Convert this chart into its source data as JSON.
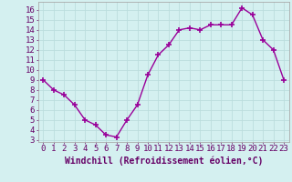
{
  "x": [
    0,
    1,
    2,
    3,
    4,
    5,
    6,
    7,
    8,
    9,
    10,
    11,
    12,
    13,
    14,
    15,
    16,
    17,
    18,
    19,
    20,
    21,
    22,
    23
  ],
  "y": [
    9.0,
    8.0,
    7.5,
    6.5,
    5.0,
    4.5,
    3.5,
    3.3,
    5.0,
    6.5,
    9.5,
    11.5,
    12.5,
    14.0,
    14.2,
    14.0,
    14.5,
    14.5,
    14.5,
    16.2,
    15.5,
    13.0,
    12.0,
    9.0
  ],
  "line_color": "#990099",
  "marker": "+",
  "markersize": 4,
  "linewidth": 1.0,
  "xlabel": "Windchill (Refroidissement éolien,°C)",
  "xlabel_fontsize": 7,
  "ylabel_ticks": [
    3,
    4,
    5,
    6,
    7,
    8,
    9,
    10,
    11,
    12,
    13,
    14,
    15,
    16
  ],
  "xtick_labels": [
    "0",
    "1",
    "2",
    "3",
    "4",
    "5",
    "6",
    "7",
    "8",
    "9",
    "10",
    "11",
    "12",
    "13",
    "14",
    "15",
    "16",
    "17",
    "18",
    "19",
    "20",
    "21",
    "22",
    "23"
  ],
  "ylim": [
    2.8,
    16.8
  ],
  "xlim": [
    -0.5,
    23.5
  ],
  "bg_color": "#d4f0f0",
  "grid_color": "#bbdddd",
  "spine_color": "#aaaaaa",
  "tick_fontsize": 6.5
}
